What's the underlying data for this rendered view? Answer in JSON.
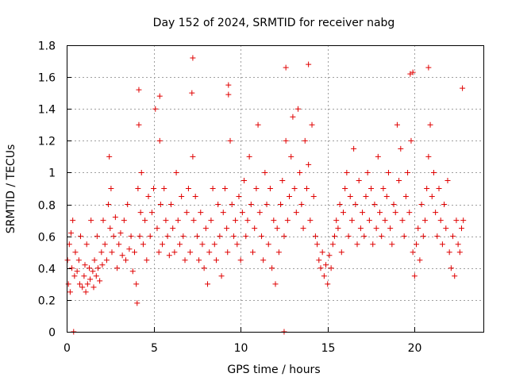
{
  "chart_data": {
    "type": "scatter",
    "title": "Day 152 of 2024, SRMTID for receiver nabg",
    "xlabel": "GPS time / hours",
    "ylabel": "SRMTID / TECUs",
    "xlim": [
      0,
      24
    ],
    "ylim": [
      0,
      1.8
    ],
    "xticks": [
      0,
      5,
      10,
      15,
      20
    ],
    "xtick_labels": [
      "0",
      "5",
      "10",
      "15",
      "20"
    ],
    "yticks": [
      0,
      0.2,
      0.4,
      0.6,
      0.8,
      1,
      1.2,
      1.4,
      1.6,
      1.8
    ],
    "ytick_labels": [
      "0",
      "0.2",
      "0.4",
      "0.6",
      "0.8",
      "1",
      "1.2",
      "1.4",
      "1.6",
      "1.8"
    ],
    "grid": true,
    "marker": "+",
    "color": "#e00000",
    "series": [
      {
        "name": "SRMTID",
        "x": [
          0.05,
          0.1,
          0.15,
          0.2,
          0.25,
          0.3,
          0.35,
          0.45,
          0.5,
          0.6,
          0.7,
          0.75,
          0.8,
          0.9,
          1.0,
          1.05,
          1.1,
          1.15,
          1.2,
          1.3,
          1.35,
          1.4,
          1.5,
          1.55,
          1.6,
          1.7,
          1.75,
          1.8,
          1.9,
          2.0,
          2.05,
          2.1,
          2.2,
          2.3,
          2.4,
          2.45,
          2.5,
          2.55,
          2.6,
          2.7,
          2.8,
          2.9,
          3.0,
          3.1,
          3.2,
          3.3,
          3.4,
          3.5,
          3.6,
          3.7,
          3.8,
          3.9,
          4.0,
          4.05,
          4.1,
          4.15,
          4.2,
          4.25,
          4.3,
          4.4,
          4.5,
          4.6,
          4.7,
          4.8,
          4.9,
          5.0,
          5.1,
          5.2,
          5.3,
          5.35,
          5.4,
          5.5,
          5.6,
          5.7,
          5.8,
          5.9,
          6.0,
          6.1,
          6.2,
          6.3,
          6.4,
          6.5,
          6.6,
          6.7,
          6.8,
          6.9,
          7.0,
          7.1,
          7.2,
          7.25,
          7.3,
          7.4,
          7.5,
          7.6,
          7.7,
          7.8,
          7.9,
          8.0,
          8.1,
          8.2,
          8.3,
          8.4,
          8.5,
          8.6,
          8.7,
          8.8,
          8.9,
          9.0,
          9.1,
          9.2,
          9.25,
          9.3,
          9.4,
          9.5,
          9.6,
          9.7,
          9.8,
          9.9,
          10.0,
          10.1,
          10.2,
          10.3,
          10.4,
          10.5,
          10.6,
          10.7,
          10.8,
          10.9,
          11.0,
          11.1,
          11.2,
          11.3,
          11.4,
          11.5,
          11.6,
          11.7,
          11.8,
          11.9,
          12.0,
          12.1,
          12.2,
          12.3,
          12.4,
          12.5,
          12.6,
          12.7,
          12.8,
          12.9,
          13.0,
          13.1,
          13.2,
          13.3,
          13.4,
          13.5,
          13.6,
          13.7,
          13.8,
          13.9,
          14.0,
          14.1,
          14.2,
          14.3,
          14.4,
          14.5,
          14.6,
          14.7,
          14.8,
          14.9,
          15.0,
          15.1,
          15.2,
          15.3,
          15.4,
          15.5,
          15.6,
          15.7,
          15.8,
          15.9,
          16.0,
          16.1,
          16.2,
          16.3,
          16.4,
          16.5,
          16.6,
          16.7,
          16.8,
          16.9,
          17.0,
          17.1,
          17.2,
          17.3,
          17.4,
          17.5,
          17.6,
          17.7,
          17.8,
          17.9,
          18.0,
          18.1,
          18.2,
          18.3,
          18.4,
          18.5,
          18.6,
          18.7,
          18.8,
          18.9,
          19.0,
          19.1,
          19.2,
          19.3,
          19.4,
          19.5,
          19.6,
          19.7,
          19.8,
          19.9,
          20.0,
          20.1,
          20.2,
          20.3,
          20.4,
          20.5,
          20.6,
          20.7,
          20.8,
          20.9,
          21.0,
          21.1,
          21.2,
          21.3,
          21.4,
          21.5,
          21.6,
          21.7,
          21.8,
          21.9,
          22.0,
          22.1,
          22.2,
          22.3,
          22.4,
          22.5,
          22.6,
          22.7,
          22.8,
          0.4,
          12.5,
          4.15,
          5.35,
          7.25,
          9.3,
          12.6,
          13.9,
          19.75,
          19.9,
          20.8,
          22.75
        ],
        "y": [
          0.45,
          0.3,
          0.55,
          0.25,
          0.62,
          0.4,
          0.7,
          0.35,
          0.5,
          0.38,
          0.45,
          0.3,
          0.6,
          0.28,
          0.35,
          0.42,
          0.25,
          0.55,
          0.3,
          0.4,
          0.33,
          0.7,
          0.38,
          0.28,
          0.45,
          0.35,
          0.6,
          0.4,
          0.32,
          0.5,
          0.42,
          0.7,
          0.55,
          0.45,
          0.8,
          1.1,
          0.65,
          0.9,
          0.5,
          0.6,
          0.72,
          0.4,
          0.55,
          0.62,
          0.48,
          0.7,
          0.45,
          0.8,
          0.52,
          0.6,
          0.38,
          0.5,
          0.3,
          0.18,
          0.9,
          1.3,
          0.6,
          0.75,
          1.0,
          0.55,
          0.7,
          0.45,
          0.85,
          0.6,
          0.75,
          0.9,
          1.4,
          0.65,
          0.5,
          1.2,
          0.8,
          0.55,
          0.9,
          0.7,
          0.6,
          0.48,
          0.8,
          0.65,
          0.5,
          1.0,
          0.7,
          0.55,
          0.85,
          0.6,
          0.45,
          0.75,
          0.9,
          0.5,
          1.5,
          1.1,
          0.7,
          0.85,
          0.6,
          0.45,
          0.75,
          0.55,
          0.4,
          0.65,
          0.3,
          0.5,
          0.7,
          0.9,
          0.55,
          0.45,
          0.8,
          0.6,
          0.35,
          0.75,
          0.9,
          0.65,
          0.5,
          1.55,
          1.2,
          0.8,
          0.6,
          0.7,
          0.55,
          0.85,
          0.45,
          0.75,
          0.95,
          0.6,
          0.7,
          1.1,
          0.8,
          0.5,
          0.65,
          0.9,
          1.3,
          0.75,
          0.6,
          0.45,
          1.0,
          0.8,
          0.55,
          0.9,
          0.4,
          0.7,
          0.3,
          0.65,
          0.5,
          0.8,
          0.95,
          0.6,
          1.2,
          0.7,
          0.85,
          1.1,
          1.35,
          0.9,
          0.75,
          1.4,
          1.0,
          0.8,
          0.65,
          1.2,
          0.9,
          1.05,
          0.7,
          1.3,
          0.85,
          0.6,
          0.55,
          0.45,
          0.4,
          0.5,
          0.35,
          0.42,
          0.3,
          0.48,
          0.4,
          0.55,
          0.6,
          0.7,
          0.65,
          0.8,
          0.5,
          0.75,
          0.9,
          1.0,
          0.6,
          0.85,
          0.7,
          1.15,
          0.8,
          0.55,
          0.95,
          0.65,
          0.75,
          0.6,
          0.85,
          1.0,
          0.7,
          0.9,
          0.55,
          0.8,
          0.65,
          1.1,
          0.75,
          0.6,
          0.9,
          0.7,
          0.85,
          1.0,
          0.65,
          0.55,
          0.8,
          0.75,
          1.3,
          0.95,
          1.15,
          0.7,
          0.6,
          0.85,
          1.0,
          0.75,
          1.2,
          0.5,
          0.35,
          0.55,
          0.65,
          0.45,
          0.8,
          0.6,
          0.7,
          0.9,
          1.1,
          1.3,
          0.85,
          1.0,
          0.75,
          0.6,
          0.9,
          0.7,
          0.55,
          0.8,
          0.65,
          0.95,
          0.5,
          0.4,
          0.6,
          0.35,
          0.7,
          0.55,
          0.5,
          0.65,
          0.7,
          0,
          0,
          1.52,
          1.48,
          1.72,
          1.49,
          1.66,
          1.68,
          1.62,
          1.63,
          1.66,
          1.53
        ]
      }
    ]
  }
}
